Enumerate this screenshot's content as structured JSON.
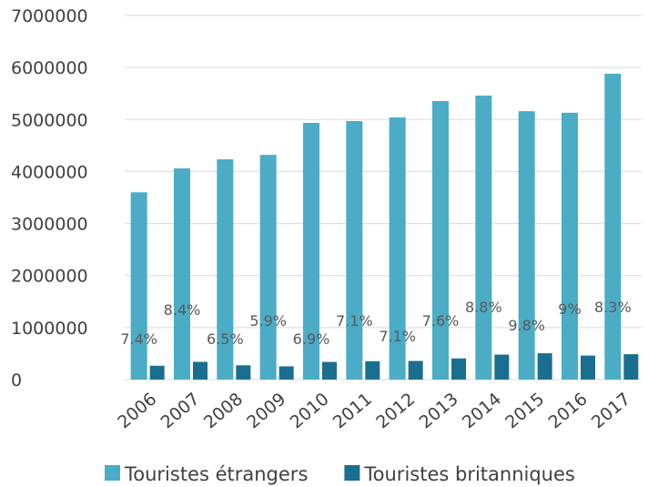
{
  "chart_data": {
    "type": "bar",
    "categories": [
      "2006",
      "2007",
      "2008",
      "2009",
      "2010",
      "2011",
      "2012",
      "2013",
      "2014",
      "2015",
      "2016",
      "2017"
    ],
    "series": [
      {
        "name": "Touristes étrangers",
        "color": "#4bacc6",
        "values": [
          3600000,
          4060000,
          4235000,
          4320000,
          4935000,
          4970000,
          5040000,
          5355000,
          5460000,
          5160000,
          5130000,
          5880000
        ]
      },
      {
        "name": "Touristes britanniques",
        "color": "#1a6f90",
        "values": [
          266000,
          341000,
          275000,
          255000,
          340000,
          353000,
          358000,
          407000,
          480000,
          506000,
          462000,
          488000
        ]
      }
    ],
    "annotations": [
      "7.4%",
      "8.4%",
      "6.5%",
      "5.9%",
      "6.9%",
      "7.1%",
      "7.1%",
      "7.6%",
      "8.8%",
      "9.8%",
      "9%",
      "8.3%"
    ],
    "ylim": [
      0,
      7000000
    ],
    "yticks": [
      0,
      1000000,
      2000000,
      3000000,
      4000000,
      5000000,
      6000000,
      7000000
    ],
    "grid": true,
    "legend": "bottom"
  }
}
